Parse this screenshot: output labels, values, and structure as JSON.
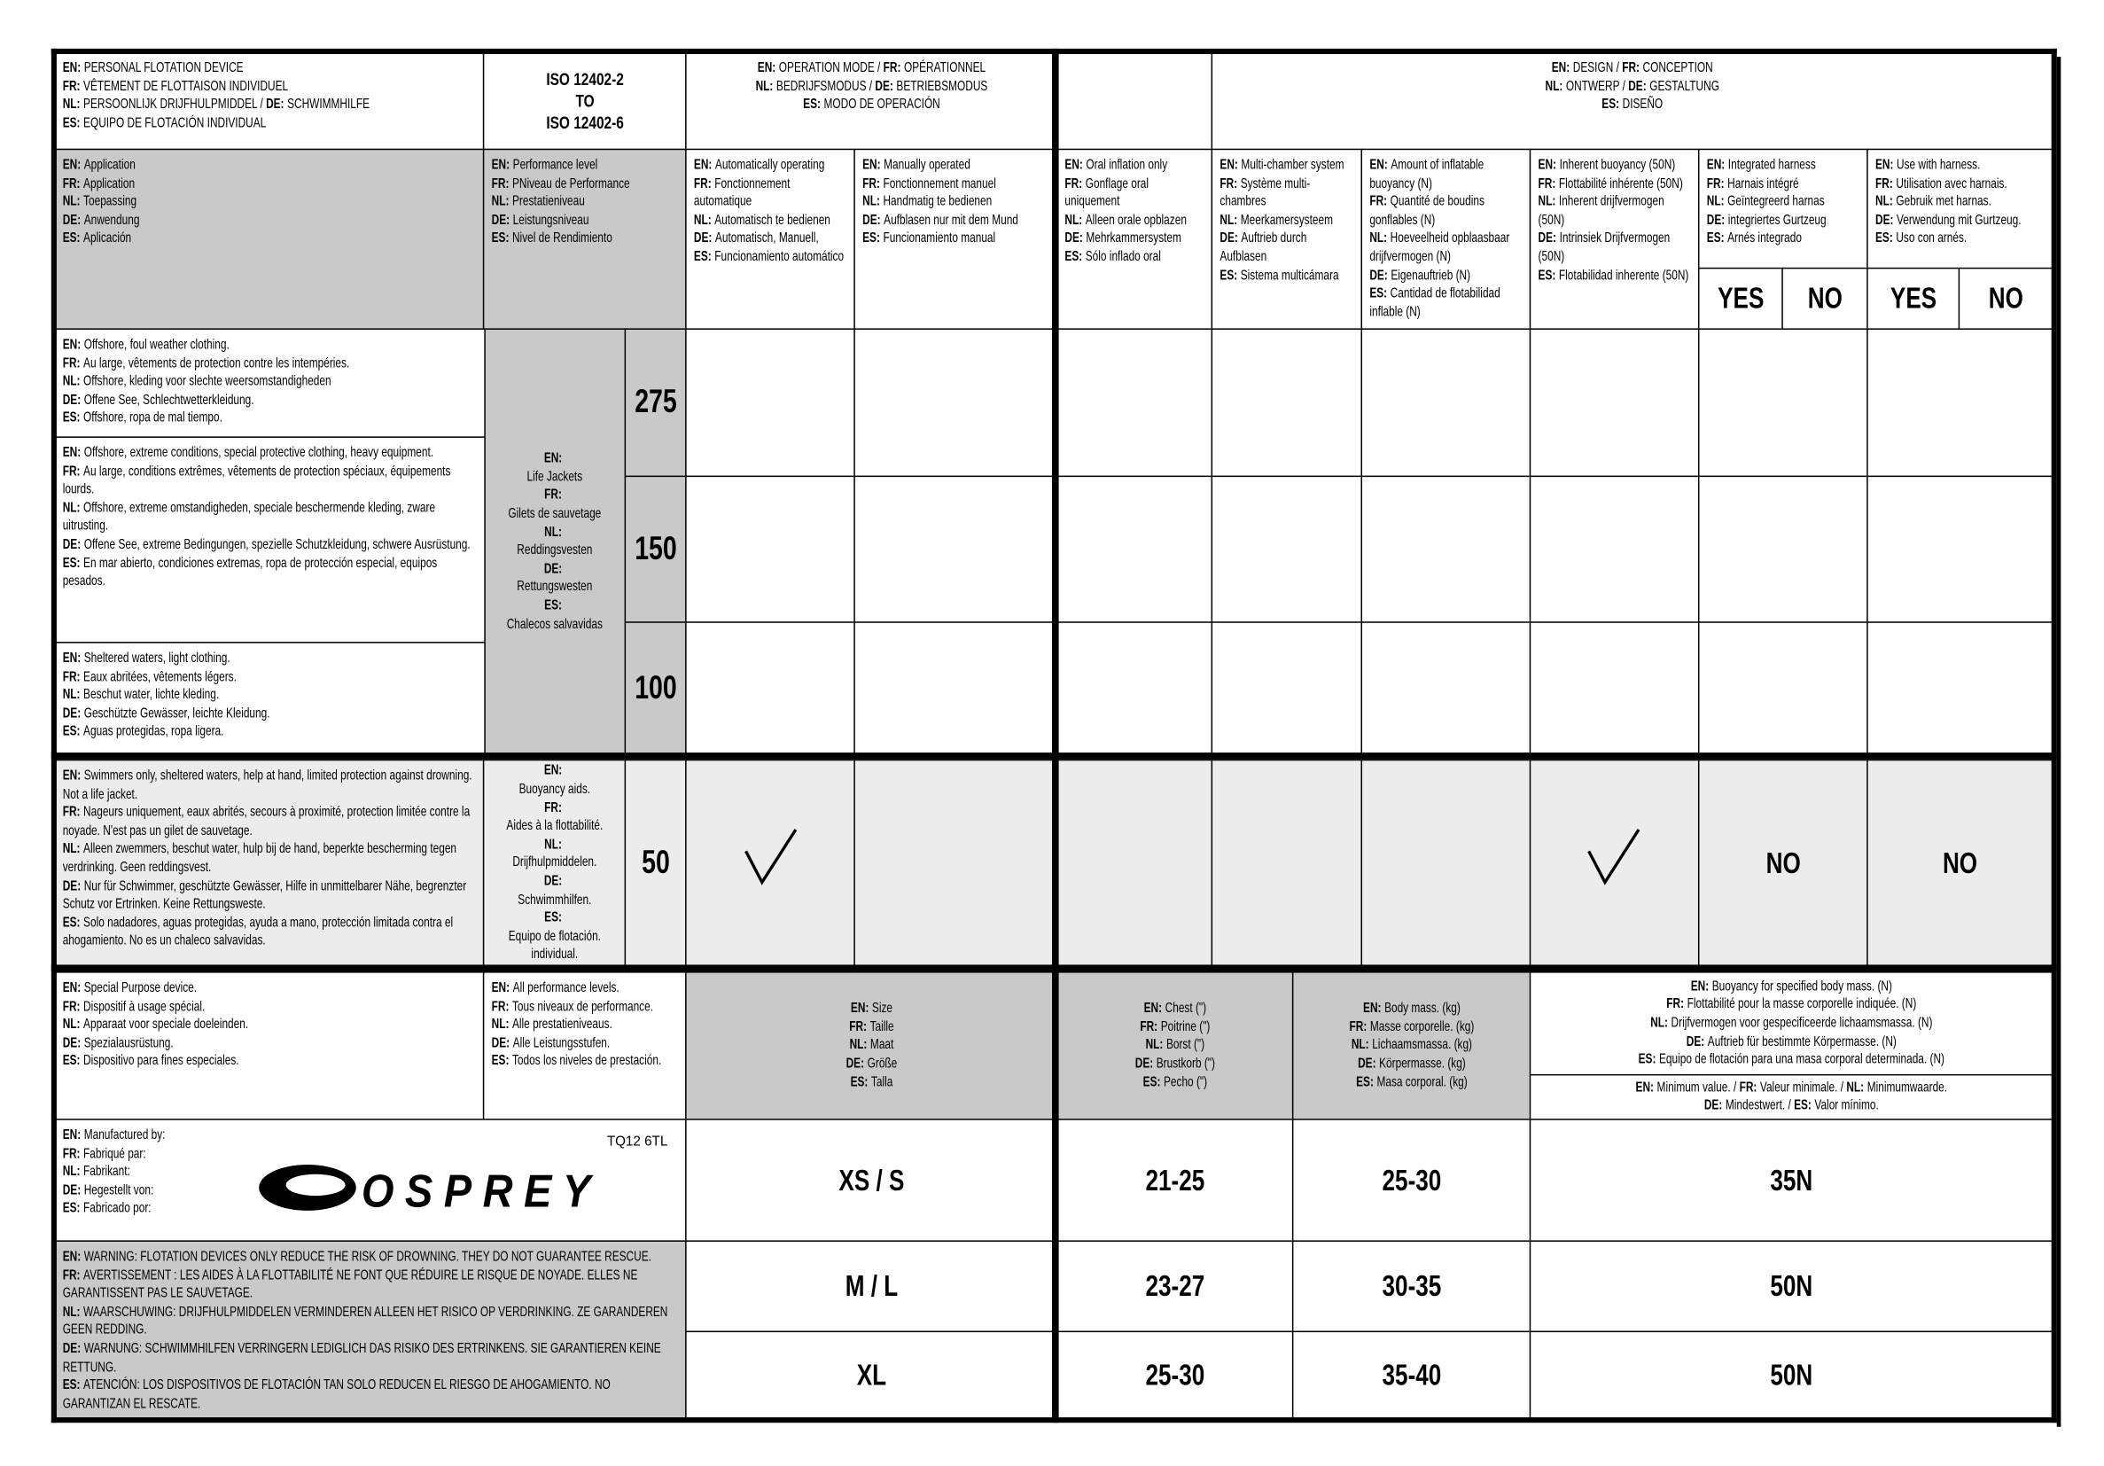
{
  "header": {
    "product": [
      [
        "EN:",
        "PERSONAL FLOTATION DEVICE"
      ],
      [
        "FR:",
        "VÊTEMENT DE FLOTTAISON INDIVIDUEL"
      ],
      [
        "NL:",
        "PERSOONLIJK DRIJFHULPMIDDEL / ",
        "DE:",
        "SCHWIMMHILFE"
      ],
      [
        "ES:",
        "EQUIPO DE FLOTACIÓN INDIVIDUAL"
      ]
    ],
    "standard": [
      "ISO 12402-2",
      "TO",
      "ISO 12402-6"
    ],
    "operation_mode": [
      [
        "EN:",
        "OPERATION MODE  / ",
        "FR:",
        "OPÉRATIONNEL"
      ],
      [
        "NL:",
        "BEDRIJFSMODUS / ",
        "DE:",
        "BETRIEBSMODUS"
      ],
      [
        "ES:",
        "MODO DE OPERACIÓN"
      ]
    ],
    "design": [
      [
        "EN:",
        "DESIGN / ",
        "FR:",
        "CONCEPTION"
      ],
      [
        "NL:",
        "ONTWERP / ",
        "DE:",
        "GESTALTUNG"
      ],
      [
        "ES:",
        "DISEÑO"
      ]
    ]
  },
  "columns": {
    "application": [
      [
        "EN:",
        "Application"
      ],
      [
        "FR:",
        "Application"
      ],
      [
        "NL:",
        "Toepassing"
      ],
      [
        "DE:",
        "Anwendung"
      ],
      [
        "ES:",
        "Aplicación"
      ]
    ],
    "performance_level": [
      [
        "EN:",
        "Performance level"
      ],
      [
        "FR:",
        "PNiveau de Performance"
      ],
      [
        "NL:",
        "Prestatieniveau"
      ],
      [
        "DE:",
        "Leistungsniveau"
      ],
      [
        "ES:",
        "Nivel de Rendimiento"
      ]
    ],
    "automatic": [
      [
        "EN:",
        "Automatically operating"
      ],
      [
        "FR:",
        "Fonctionnement automatique"
      ],
      [
        "NL:",
        "Automatisch te bedienen"
      ],
      [
        "DE:",
        "Automatisch, Manuell,"
      ],
      [
        "ES:",
        "Funcionamiento automático"
      ]
    ],
    "manual": [
      [
        "EN:",
        "Manually operated"
      ],
      [
        "FR:",
        "Fonctionnement manuel"
      ],
      [
        "NL:",
        "Handmatig te bedienen"
      ],
      [
        "DE:",
        "Aufblasen nur mit dem Mund"
      ],
      [
        "ES:",
        "Funcionamiento manual"
      ]
    ],
    "oral": [
      [
        "EN:",
        "Oral inflation only"
      ],
      [
        "FR:",
        "Gonflage oral uniquement"
      ],
      [
        "NL:",
        "Alleen orale opblazen"
      ],
      [
        "DE:",
        "Mehrkammersystem"
      ],
      [
        "ES:",
        "Sólo inflado oral"
      ]
    ],
    "multi_chamber": [
      [
        "EN:",
        "Multi-chamber system"
      ],
      [
        "FR:",
        "Système multi-chambres"
      ],
      [
        "NL:",
        "Meerkamersysteem"
      ],
      [
        "DE:",
        "Auftrieb durch Aufblasen"
      ],
      [
        "ES:",
        "Sistema multicámara"
      ]
    ],
    "amount": [
      [
        "EN:",
        "Amount of inflatable buoyancy (N)"
      ],
      [
        "FR:",
        "Quantité de boudins gonflables (N)"
      ],
      [
        "NL:",
        "Hoeveelheid opblaasbaar drijfvermogen (N)"
      ],
      [
        "DE:",
        "Eigenauftrieb (N)"
      ],
      [
        "ES:",
        "Cantidad de flotabilidad inflable (N)"
      ]
    ],
    "inherent": [
      [
        "EN:",
        "Inherent buoyancy (50N)"
      ],
      [
        "FR:",
        "Flottabilité inhérente (50N)"
      ],
      [
        "NL:",
        "Inherent drijfvermogen (50N)"
      ],
      [
        "DE:",
        "Intrinsiek Drijfvermogen (50N)"
      ],
      [
        "ES:",
        "Flotabilidad inherente (50N)"
      ]
    ],
    "harness": [
      [
        "EN:",
        "Integrated harness"
      ],
      [
        "FR:",
        "Harnais intégré"
      ],
      [
        "NL:",
        "Geïntegreerd harnas"
      ],
      [
        "DE:",
        "integriertes Gurtzeug"
      ],
      [
        "ES:",
        "Arnés integrado"
      ]
    ],
    "use_with_harness": [
      [
        "EN:",
        "Use with harness."
      ],
      [
        "FR:",
        "Utilisation avec harnais."
      ],
      [
        "NL:",
        "Gebruik met harnas."
      ],
      [
        "DE:",
        "Verwendung mit Gurtzeug."
      ],
      [
        "ES:",
        "Uso con arnés."
      ]
    ],
    "harness_yes": "YES",
    "harness_no": "NO",
    "use_yes": "YES",
    "use_no": "NO"
  },
  "life_jackets": {
    "label": [
      [
        "EN:"
      ],
      "Life Jackets",
      [
        "FR:"
      ],
      "Gilets de sauvetage",
      [
        "NL:"
      ],
      "Reddingsvesten",
      [
        "DE:"
      ],
      "Rettungswesten",
      [
        "ES:"
      ],
      "Chalecos salvavidas"
    ],
    "rows": [
      {
        "application": [
          [
            "EN:",
            "Offshore, foul weather clothing."
          ],
          [
            "FR:",
            "Au large, vêtements de protection contre les intempéries."
          ],
          [
            "NL:",
            "Offshore, kleding voor slechte weersomstandigheden"
          ],
          [
            "DE:",
            "Offene See, Schlechtwetterkleidung."
          ],
          [
            "ES:",
            "Offshore, ropa de mal tiempo."
          ]
        ],
        "level": "275"
      },
      {
        "application": [
          [
            "EN:",
            "Offshore, extreme conditions, special protective clothing, heavy equipment."
          ],
          [
            "FR:",
            "Au large, conditions extrêmes, vêtements de protection spéciaux, équipements lourds."
          ],
          [
            "NL:",
            "Offshore, extreme omstandigheden, speciale beschermende kleding, zware uitrusting."
          ],
          [
            "DE:",
            "Offene See, extreme Bedingungen, spezielle Schutzkleidung, schwere Ausrüstung."
          ],
          [
            "ES:",
            "En mar abierto, condiciones extremas, ropa de protección especial, equipos pesados."
          ]
        ],
        "level": "150"
      },
      {
        "application": [
          [
            "EN:",
            "Sheltered waters, light clothing."
          ],
          [
            "FR:",
            "Eaux abritées, vêtements légers."
          ],
          [
            "NL:",
            "Beschut water, lichte kleding."
          ],
          [
            "DE:",
            "Geschützte Gewässer, leichte Kleidung."
          ],
          [
            "ES:",
            "Aguas protegidas, ropa ligera."
          ]
        ],
        "level": "100"
      }
    ]
  },
  "buoyancy_aid": {
    "application": [
      [
        "EN:",
        "Swimmers only, sheltered waters, help at hand, limited protection against drowning. Not a life jacket."
      ],
      [
        "FR:",
        "Nageurs uniquement, eaux abrités, secours à proximité, protection limitée contre la noyade. N'est pas un gilet de sauvetage."
      ],
      [
        "NL:",
        "Alleen zwemmers, beschut water, hulp bij de hand, beperkte bescherming tegen verdrinking. Geen reddingsvest."
      ],
      [
        "DE:",
        "Nur für Schwimmer, geschützte Gewässer, Hilfe in unmittelbarer Nähe, begrenzter Schutz vor Ertrinken. Keine Rettungsweste."
      ],
      [
        "ES:",
        "Solo nadadores, aguas protegidas, ayuda a mano, protección limitada contra el ahogamiento. No es un chaleco salvavidas."
      ]
    ],
    "label": [
      [
        "EN:"
      ],
      "Buoyancy aids.",
      [
        "FR:"
      ],
      "Aides à la flottabilité.",
      [
        "NL:"
      ],
      "Drijfhulpmiddelen.",
      [
        "DE:"
      ],
      "Schwimmhilfen.",
      [
        "ES:"
      ],
      "Equipo de flotación. individual."
    ],
    "level": "50",
    "harness": "NO",
    "use_with_harness": "NO"
  },
  "special": {
    "application": [
      [
        "EN:",
        "Special Purpose device."
      ],
      [
        "FR:",
        "Dispositif à usage spécial."
      ],
      [
        "NL:",
        "Apparaat voor speciale doeleinden."
      ],
      [
        "DE:",
        "Spezialausrüstung."
      ],
      [
        "ES:",
        "Dispositivo para fines especiales."
      ]
    ],
    "performance": [
      [
        "EN:",
        "All performance levels."
      ],
      [
        "FR:",
        "Tous niveaux de performance."
      ],
      [
        "NL:",
        "Alle prestatieniveaus."
      ],
      [
        "DE:",
        "Alle Leistungsstufen."
      ],
      [
        "ES:",
        "Todos los niveles de prestación."
      ]
    ],
    "size": [
      [
        "EN:",
        "Size"
      ],
      [
        "FR:",
        "Taille"
      ],
      [
        "NL:",
        "Maat"
      ],
      [
        "DE:",
        "Größe"
      ],
      [
        "ES:",
        "Talla"
      ]
    ],
    "chest": [
      [
        "EN:",
        "Chest (\")"
      ],
      [
        "FR:",
        "Poitrine (\")"
      ],
      [
        "NL:",
        "Borst (\")"
      ],
      [
        "DE:",
        "Brustkorb (\")"
      ],
      [
        "ES:",
        "Pecho (\")"
      ]
    ],
    "body_mass": [
      [
        "EN:",
        "Body mass. (kg)"
      ],
      [
        "FR:",
        "Masse corporelle. (kg)"
      ],
      [
        "NL:",
        "Lichaamsmassa. (kg)"
      ],
      [
        "DE:",
        "Körpermasse. (kg)"
      ],
      [
        "ES:",
        "Masa corporal. (kg)"
      ]
    ],
    "buoyancy": [
      [
        "EN:",
        "Buoyancy for specified body mass. (N)"
      ],
      [
        "FR:",
        "Flottabilité pour la masse corporelle indiquée. (N)"
      ],
      [
        "NL:",
        "Drijfvermogen voor gespecificeerde lichaamsmassa. (N)"
      ],
      [
        "DE:",
        "Auftrieb für bestimmte Körpermasse. (N)"
      ],
      [
        "ES:",
        "Equipo de flotación para una masa corporal determinada. (N)"
      ]
    ],
    "minimum": [
      [
        "EN:",
        "Minimum value.  / ",
        "FR:",
        "Valeur minimale. / ",
        "NL:",
        "Minimumwaarde."
      ],
      [
        "DE:",
        "Mindestwert. / ",
        "ES:",
        "Valor mínimo."
      ]
    ]
  },
  "manufacturer": {
    "label": [
      [
        "EN:",
        "Manufactured by:"
      ],
      [
        "FR:",
        "Fabriqué par:"
      ],
      [
        "NL:",
        "Fabrikant:"
      ],
      [
        "DE:",
        "Hegestellt von:"
      ],
      [
        "ES:",
        "Fabricado por:"
      ]
    ],
    "code": "TQ12 6TL",
    "logo": "OSPREY"
  },
  "warning": [
    [
      "EN:",
      "WARNING: FLOTATION DEVICES ONLY REDUCE THE RISK OF DROWNING. THEY DO NOT GUARANTEE RESCUE."
    ],
    [
      "FR:",
      "AVERTISSEMENT : LES AIDES À LA FLOTTABILITÉ NE FONT QUE RÉDUIRE LE RISQUE DE NOYADE. ELLES NE GARANTISSENT PAS LE SAUVETAGE."
    ],
    [
      "NL:",
      "WAARSCHUWING: DRIJFHULPMIDDELEN VERMINDEREN ALLEEN HET RISICO OP VERDRINKING. ZE GARANDEREN GEEN REDDING."
    ],
    [
      "DE:",
      "WARNUNG: SCHWIMMHILFEN VERRINGERN LEDIGLICH DAS RISIKO DES ERTRINKENS. SIE GARANTIEREN KEINE RETTUNG."
    ],
    [
      "ES:",
      "ATENCIÓN: LOS DISPOSITIVOS DE FLOTACIÓN TAN SOLO REDUCEN EL RIESGO DE AHOGAMIENTO. NO GARANTIZAN EL RESCATE."
    ]
  ],
  "sizes": [
    {
      "size": "XS / S",
      "chest": "21-25",
      "mass": "25-30",
      "buoyancy": "35N"
    },
    {
      "size": "M / L",
      "chest": "23-27",
      "mass": "30-35",
      "buoyancy": "50N"
    },
    {
      "size": "XL",
      "chest": "25-30",
      "mass": "35-40",
      "buoyancy": "50N"
    }
  ]
}
